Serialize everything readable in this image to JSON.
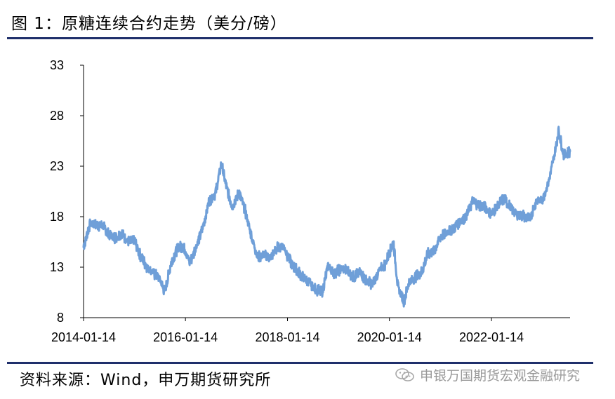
{
  "header": {
    "title": "图 1：原糖连续合约走势（美分/磅）"
  },
  "footer": {
    "source": "资料来源：Wind，申万期货研究所",
    "watermark": "申银万国期货宏观金融研究"
  },
  "icons": {
    "watermark_icon": "wechat-logo-icon"
  },
  "colors": {
    "line": "#6f9fd8",
    "rule": "#1f2f6b",
    "axis": "#000000",
    "watermark": "#9a9a9a"
  },
  "chart_data": {
    "type": "line",
    "title": "原糖连续合约走势（美分/磅）",
    "xlabel": "",
    "ylabel": "",
    "ylim": [
      8,
      33
    ],
    "yticks": [
      "8",
      "13",
      "18",
      "23",
      "28",
      "33"
    ],
    "xticks": [
      "2014-01-14",
      "2016-01-14",
      "2018-01-14",
      "2020-01-14",
      "2022-01-14"
    ],
    "xlim": [
      "2014-01-14",
      "2023-07-31"
    ],
    "grid": false,
    "legend": "none",
    "series": [
      {
        "x": [
          "2014-01-14",
          "2014-03-01",
          "2014-04-15",
          "2014-06-01",
          "2014-07-15",
          "2014-09-01",
          "2014-10-15",
          "2014-12-01",
          "2015-01-15",
          "2015-03-01",
          "2015-04-15",
          "2015-06-01",
          "2015-07-15",
          "2015-08-20",
          "2015-10-01",
          "2015-11-15",
          "2016-01-01",
          "2016-02-15",
          "2016-04-01",
          "2016-05-15",
          "2016-07-01",
          "2016-08-15",
          "2016-09-28",
          "2016-11-01",
          "2016-12-15",
          "2017-02-01",
          "2017-03-15",
          "2017-05-01",
          "2017-06-15",
          "2017-08-01",
          "2017-09-15",
          "2017-11-01",
          "2017-12-15",
          "2018-02-01",
          "2018-03-15",
          "2018-05-01",
          "2018-06-15",
          "2018-08-01",
          "2018-09-20",
          "2018-11-01",
          "2018-12-15",
          "2019-02-01",
          "2019-03-15",
          "2019-05-01",
          "2019-06-15",
          "2019-08-01",
          "2019-09-15",
          "2019-11-01",
          "2019-12-15",
          "2020-02-12",
          "2020-03-15",
          "2020-04-28",
          "2020-06-01",
          "2020-07-15",
          "2020-09-01",
          "2020-10-15",
          "2020-12-01",
          "2021-01-15",
          "2021-03-01",
          "2021-04-15",
          "2021-06-01",
          "2021-07-15",
          "2021-09-01",
          "2021-10-15",
          "2021-12-01",
          "2022-01-15",
          "2022-03-01",
          "2022-04-15",
          "2022-06-01",
          "2022-07-15",
          "2022-09-01",
          "2022-10-15",
          "2022-12-01",
          "2023-01-15",
          "2023-03-01",
          "2023-04-15",
          "2023-05-10",
          "2023-06-15",
          "2023-07-31"
        ],
        "values": [
          15.0,
          17.3,
          17.2,
          17.1,
          16.2,
          15.9,
          16.3,
          15.5,
          15.6,
          14.0,
          13.0,
          12.4,
          11.8,
          10.5,
          13.3,
          14.8,
          15.1,
          13.4,
          15.1,
          16.8,
          19.5,
          20.3,
          23.3,
          21.0,
          19.0,
          20.4,
          18.7,
          16.0,
          14.0,
          14.2,
          13.9,
          14.9,
          15.1,
          13.6,
          12.8,
          12.0,
          11.5,
          10.8,
          10.5,
          13.2,
          12.4,
          12.8,
          12.7,
          12.0,
          12.5,
          11.6,
          11.3,
          12.6,
          13.3,
          15.5,
          11.0,
          9.6,
          11.5,
          12.0,
          12.5,
          14.3,
          14.7,
          16.0,
          16.5,
          16.8,
          17.5,
          18.0,
          19.5,
          19.2,
          18.9,
          18.3,
          19.1,
          19.8,
          18.9,
          18.2,
          18.1,
          17.8,
          19.5,
          19.7,
          21.5,
          24.5,
          26.5,
          24.1,
          24.5
        ]
      }
    ]
  }
}
